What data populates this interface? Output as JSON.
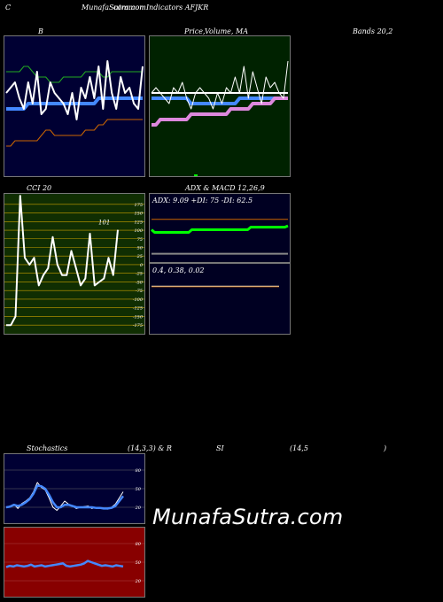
{
  "header": {
    "c": "C",
    "title": "MunafaSutra.com",
    "title_overlay": "common Indicators AFJKR"
  },
  "labels": {
    "b": "B",
    "price_title": "Price,",
    "price_overlay": "Volume,",
    "ma": "MA",
    "bands": "Bands 20,2",
    "cci": "CCI 20",
    "adx_macd": "ADX  & MACD 12,26,9",
    "adx_values": "ADX: 9.09  +DI: 75  -DI: 62.5",
    "macd_values": "0.4,  0.38,  0.02",
    "stoch_left": "Stochastics",
    "stoch_params": "(14,3,3) & R",
    "rsi_si": "SI",
    "rsi_params": "(14,5",
    "rsi_close": ")",
    "watermark": "MunafaSutra.com"
  },
  "colors": {
    "bands_bg": "#000033",
    "price_bg": "#002200",
    "cci_bg": "#102e02",
    "adx_bg": "#000022",
    "stoch_bg": "#000033",
    "rsi_bg": "#880000",
    "white": "#ffffff",
    "blue": "#4488ff",
    "green": "#22aa22",
    "bright_green": "#00ff00",
    "orange": "#cc6600",
    "pink": "#dd88dd",
    "gold": "#c8a000",
    "gray": "#888888"
  },
  "chart_data": [
    {
      "type": "line",
      "name": "bollinger",
      "series": [
        {
          "values": [
            100,
            101,
            102,
            99,
            97,
            102,
            98,
            104,
            96,
            97,
            102,
            100,
            99,
            98,
            96,
            100,
            95,
            101,
            99,
            103,
            99,
            105,
            97,
            106,
            100,
            97,
            103,
            100,
            101,
            98,
            97,
            105
          ]
        },
        {
          "values": [
            97,
            97,
            97,
            97,
            97,
            98,
            98,
            98,
            98,
            98,
            98,
            98,
            98,
            98,
            98,
            98,
            98,
            98,
            98,
            98,
            98,
            99,
            99,
            99,
            99,
            99,
            99,
            99,
            99,
            99,
            99,
            99
          ]
        },
        {
          "values": [
            104,
            104,
            104,
            104,
            105,
            105,
            104,
            103,
            103,
            103,
            102,
            102,
            102,
            103,
            103,
            103,
            103,
            103,
            104,
            104,
            104,
            104,
            103,
            103,
            104,
            104,
            104,
            104,
            104,
            104,
            104,
            104
          ]
        },
        {
          "values": [
            90,
            90,
            91,
            91,
            91,
            91,
            91,
            91,
            92,
            93,
            93,
            92,
            92,
            92,
            92,
            92,
            92,
            92,
            93,
            93,
            93,
            94,
            94,
            95,
            95,
            95,
            95,
            95,
            95,
            95,
            95,
            95
          ]
        }
      ],
      "ylim": [
        85,
        110
      ]
    },
    {
      "type": "line",
      "name": "price_ma",
      "series": [
        {
          "values": [
            100,
            101,
            100,
            99,
            98,
            101,
            100,
            102,
            99,
            97,
            100,
            101,
            100,
            99,
            97,
            100,
            98,
            101,
            100,
            103,
            100,
            105,
            99,
            104,
            101,
            98,
            103,
            101,
            102,
            100,
            99,
            106
          ]
        },
        {
          "values": [
            99,
            99,
            99,
            99,
            99,
            99,
            99,
            99,
            99,
            98,
            98,
            98,
            98,
            98,
            98,
            98,
            98,
            98,
            98,
            98,
            99,
            99,
            99,
            99,
            99,
            99,
            99,
            99,
            99,
            99,
            99,
            99
          ]
        },
        {
          "values": [
            100,
            100,
            100,
            100,
            100,
            100,
            100,
            100,
            100,
            100,
            100,
            100,
            100,
            100,
            100,
            100,
            100,
            100,
            100,
            100,
            100,
            100,
            100,
            100,
            100,
            100,
            100,
            100,
            100,
            100,
            100,
            100
          ]
        },
        {
          "values": [
            94,
            94,
            95,
            95,
            95,
            95,
            95,
            95,
            95,
            96,
            96,
            96,
            96,
            96,
            96,
            96,
            96,
            96,
            97,
            97,
            97,
            97,
            97,
            98,
            98,
            98,
            98,
            98,
            99,
            99,
            99,
            99
          ]
        }
      ],
      "ylim": [
        85,
        110
      ]
    },
    {
      "type": "line",
      "name": "cci",
      "ticks": [
        "175",
        "150",
        "125",
        "100",
        "75",
        "50",
        "25",
        "0",
        "-25",
        "-50",
        "-75",
        "-100",
        "-125",
        "-150",
        "-175"
      ],
      "tick_values": [
        175,
        150,
        125,
        100,
        75,
        50,
        25,
        0,
        -25,
        -50,
        -75,
        -100,
        -125,
        -150,
        -175
      ],
      "last_label": "101",
      "series": [
        {
          "values": [
            -175,
            -175,
            -150,
            200,
            20,
            0,
            20,
            -60,
            -30,
            -10,
            80,
            0,
            -30,
            -30,
            40,
            -10,
            -60,
            -40,
            90,
            -60,
            -50,
            -40,
            20,
            -30,
            101
          ]
        }
      ],
      "ylim": [
        -190,
        195
      ]
    },
    {
      "type": "line",
      "name": "adx",
      "series": [
        {
          "values": [
            75,
            75,
            75,
            75,
            75,
            75,
            75,
            75,
            75,
            75,
            75,
            75,
            75,
            75,
            75,
            75,
            75,
            75,
            75,
            75,
            75,
            75,
            75,
            75,
            75,
            75,
            75,
            75,
            75,
            75,
            75,
            75,
            75,
            75,
            75,
            75,
            75,
            75,
            75,
            75,
            75,
            75,
            75,
            75,
            75
          ]
        },
        {
          "values": [
            55,
            50,
            50,
            50,
            50,
            50,
            50,
            50,
            50,
            50,
            50,
            50,
            50,
            55,
            55,
            55,
            55,
            55,
            55,
            55,
            55,
            55,
            55,
            55,
            55,
            55,
            55,
            55,
            55,
            55,
            55,
            55,
            60,
            60,
            60,
            60,
            60,
            60,
            60,
            60,
            60,
            60,
            60,
            60,
            62.5
          ]
        },
        {
          "values": [
            9.09,
            9.09,
            9.09,
            9.09,
            9.09,
            9.09,
            9.09,
            9.09,
            9.09,
            9.09,
            9.09,
            9.09,
            9.09,
            9.09,
            9.09,
            9.09,
            9.09,
            9.09,
            9.09,
            9.09,
            9.09,
            9.09,
            9.09,
            9.09,
            9.09,
            9.09,
            9.09,
            9.09,
            9.09,
            9.09,
            9.09,
            9.09,
            9.09,
            9.09,
            9.09,
            9.09,
            9.09,
            9.09,
            9.09,
            9.09,
            9.09,
            9.09,
            9.09,
            9.09,
            9.09
          ]
        }
      ],
      "ylim": [
        0,
        100
      ]
    },
    {
      "type": "line",
      "name": "macd",
      "series": [
        {
          "values": [
            0.4,
            0.4,
            0.4,
            0.4,
            0.4,
            0.4,
            0.4,
            0.4,
            0.4,
            0.4
          ]
        },
        {
          "values": [
            0.38,
            0.38,
            0.38,
            0.38,
            0.38,
            0.38,
            0.38,
            0.38,
            0.38,
            0.38
          ]
        }
      ],
      "ylim": [
        -1,
        1
      ]
    },
    {
      "type": "line",
      "name": "stochastics",
      "ticks": [
        "80",
        "50",
        "20"
      ],
      "tick_values": [
        80,
        50,
        20
      ],
      "series": [
        {
          "values": [
            20,
            22,
            25,
            18,
            26,
            30,
            35,
            45,
            60,
            52,
            48,
            35,
            20,
            15,
            22,
            30,
            25,
            22,
            18,
            20,
            21,
            22,
            18,
            20,
            19,
            18,
            17,
            20,
            25,
            35,
            45
          ]
        },
        {
          "values": [
            20,
            21,
            24,
            22,
            24,
            28,
            33,
            42,
            55,
            54,
            50,
            40,
            28,
            20,
            20,
            24,
            24,
            22,
            20,
            20,
            20,
            20,
            20,
            19,
            19,
            18,
            18,
            19,
            22,
            30,
            38
          ]
        }
      ],
      "ylim": [
        0,
        100
      ]
    },
    {
      "type": "line",
      "name": "rsi",
      "ticks": [
        "80",
        "50",
        "20"
      ],
      "tick_values": [
        80,
        50,
        20
      ],
      "series": [
        {
          "values": [
            42,
            44,
            43,
            45,
            44,
            43,
            44,
            46,
            43,
            44,
            45,
            43,
            44,
            45,
            46,
            47,
            48,
            44,
            43,
            44,
            45,
            46,
            48,
            52,
            50,
            48,
            46,
            44,
            45,
            44,
            43,
            45,
            44,
            43
          ]
        }
      ],
      "ylim": [
        0,
        100
      ]
    }
  ]
}
